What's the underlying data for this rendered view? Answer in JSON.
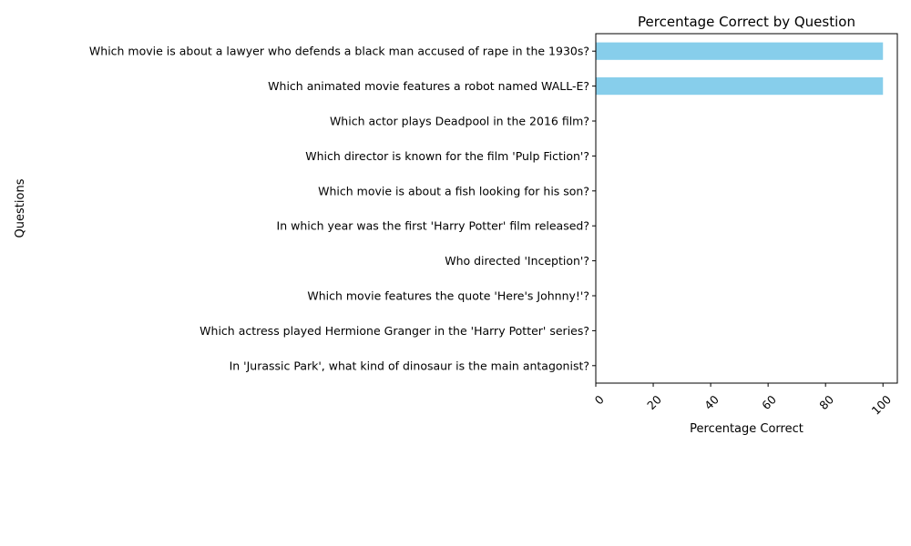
{
  "chart_data": {
    "type": "bar",
    "orientation": "horizontal",
    "title": "Percentage Correct by Question",
    "xlabel": "Percentage Correct",
    "ylabel": "Questions",
    "xlim": [
      0,
      105
    ],
    "xticks": [
      0,
      20,
      40,
      60,
      80,
      100
    ],
    "categories": [
      "Which movie is about a lawyer who defends a black man accused of rape in the 1930s?",
      "Which animated movie features a robot named WALL-E?",
      "Which actor plays Deadpool in the 2016 film?",
      "Which director is known for the film 'Pulp Fiction'?",
      "Which movie is about a fish looking for his son?",
      "In which year was the first 'Harry Potter' film released?",
      "Who directed 'Inception'?",
      "Which movie features the quote 'Here's Johnny!'?",
      "Which actress played Hermione Granger in the 'Harry Potter' series?",
      "In 'Jurassic Park', what kind of dinosaur is the main antagonist?"
    ],
    "values": [
      100,
      100,
      0,
      0,
      0,
      0,
      0,
      0,
      0,
      0
    ],
    "bar_color": "#87ceeb",
    "grid": false,
    "legend": "none"
  }
}
